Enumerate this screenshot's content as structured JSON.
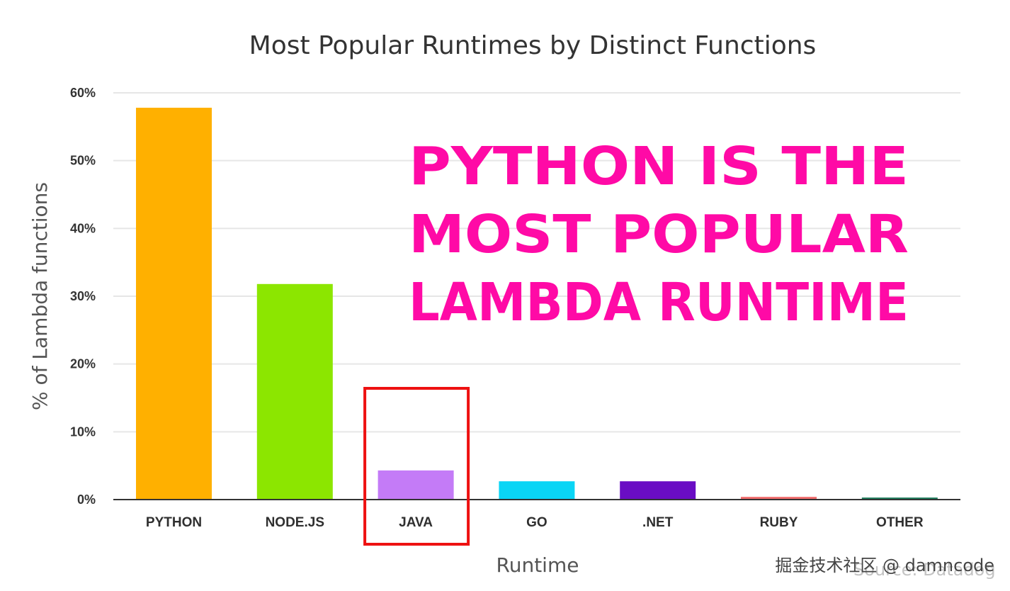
{
  "chart_data": {
    "type": "bar",
    "title": "Most Popular Runtimes by Distinct Functions",
    "xlabel": "Runtime",
    "ylabel": "% of Lambda functions",
    "categories": [
      "PYTHON",
      "NODE.JS",
      "JAVA",
      "GO",
      ".NET",
      "RUBY",
      "OTHER"
    ],
    "values": [
      57.8,
      31.8,
      4.3,
      2.7,
      2.7,
      0.4,
      0.3
    ],
    "colors": [
      "#ffb000",
      "#8ce600",
      "#c47bf7",
      "#0ad5f5",
      "#6a0dc4",
      "#f06a6a",
      "#1a7a5a"
    ],
    "ylim": [
      0,
      60
    ],
    "yticks": [
      0,
      10,
      20,
      30,
      40,
      50,
      60
    ],
    "ytick_labels": [
      "0%",
      "10%",
      "20%",
      "30%",
      "40%",
      "50%",
      "60%"
    ],
    "grid": true,
    "annotations": [
      {
        "type": "text",
        "lines": [
          "PYTHON IS THE",
          "MOST POPULAR",
          "LAMBDA RUNTIME"
        ],
        "color": "#ff0aa6"
      },
      {
        "type": "highlight-box",
        "category": "JAVA",
        "color": "#ee1111"
      }
    ]
  },
  "watermark": {
    "text": "掘金技术社区 @ damncode",
    "source": "Source: Datadog"
  }
}
